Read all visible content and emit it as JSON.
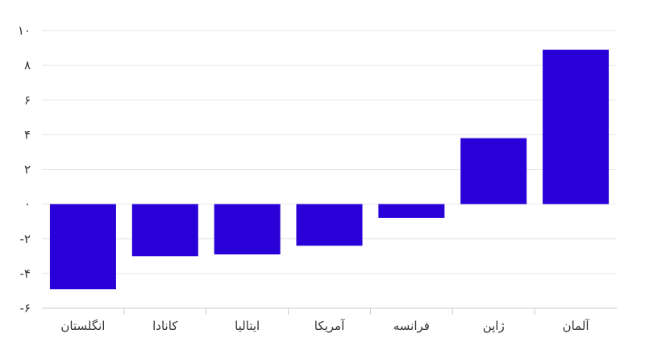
{
  "chart_data": {
    "type": "bar",
    "title": "",
    "xlabel": "",
    "ylabel": "",
    "categories": [
      "انگلستان",
      "کانادا",
      "ایتالیا",
      "آمریکا",
      "فرانسه",
      "ژاپن",
      "آلمان"
    ],
    "values": [
      -4.9,
      -3.0,
      -2.9,
      -2.4,
      -0.8,
      3.8,
      8.9
    ],
    "ylim": [
      -6,
      10
    ],
    "yticks": [
      10,
      8,
      6,
      4,
      2,
      0,
      -2,
      -4,
      -6
    ],
    "ytick_labels": [
      "۱۰",
      "۸",
      "۶",
      "۴",
      "۲",
      "۰",
      "-۲",
      "-۴",
      "-۶"
    ],
    "grid": true,
    "legend": "none",
    "bar_color": "#2a00d8"
  }
}
